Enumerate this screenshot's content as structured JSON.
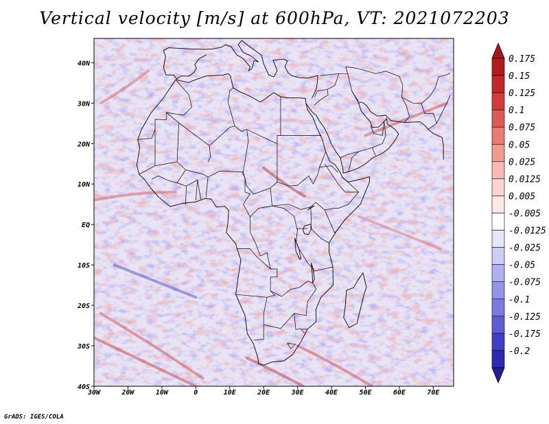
{
  "title": "Vertical velocity [m/s] at 600hPa, VT: 2021072203",
  "credit": "GrADS: IGES/COLA",
  "map": {
    "projection": "latlon",
    "lon_range": [
      -30,
      76
    ],
    "lat_range": [
      -40,
      46
    ],
    "lon_ticks": [
      {
        "value": -30,
        "label": "30W"
      },
      {
        "value": -20,
        "label": "20W"
      },
      {
        "value": -10,
        "label": "10W"
      },
      {
        "value": 0,
        "label": "0"
      },
      {
        "value": 10,
        "label": "10E"
      },
      {
        "value": 20,
        "label": "20E"
      },
      {
        "value": 30,
        "label": "30E"
      },
      {
        "value": 40,
        "label": "40E"
      },
      {
        "value": 50,
        "label": "50E"
      },
      {
        "value": 60,
        "label": "60E"
      },
      {
        "value": 70,
        "label": "70E"
      }
    ],
    "lat_ticks": [
      {
        "value": 40,
        "label": "40N"
      },
      {
        "value": 30,
        "label": "30N"
      },
      {
        "value": 20,
        "label": "20N"
      },
      {
        "value": 10,
        "label": "10N"
      },
      {
        "value": 0,
        "label": "EQ"
      },
      {
        "value": -10,
        "label": "10S"
      },
      {
        "value": -20,
        "label": "20S"
      },
      {
        "value": -30,
        "label": "30S"
      },
      {
        "value": -40,
        "label": "40S"
      }
    ]
  },
  "colorbar": {
    "levels": [
      {
        "label": "0.175",
        "color": "#b31a1c"
      },
      {
        "label": "0.15",
        "color": "#c6262a"
      },
      {
        "label": "0.125",
        "color": "#d43c3c"
      },
      {
        "label": "0.1",
        "color": "#e05a55"
      },
      {
        "label": "0.075",
        "color": "#eb7a73"
      },
      {
        "label": "0.05",
        "color": "#f29a92"
      },
      {
        "label": "0.025",
        "color": "#f7b9b2"
      },
      {
        "label": "0.0125",
        "color": "#fbd4cf"
      },
      {
        "label": "0.005",
        "color": "#fde9e6"
      },
      {
        "label": "-0.005",
        "color": "#ffffff"
      },
      {
        "label": "-0.0125",
        "color": "#e6e6fb"
      },
      {
        "label": "-0.025",
        "color": "#ccccf5"
      },
      {
        "label": "-0.05",
        "color": "#b0b0ef"
      },
      {
        "label": "-0.075",
        "color": "#9595e8"
      },
      {
        "label": "-0.1",
        "color": "#7a7ae0"
      },
      {
        "label": "-0.125",
        "color": "#5d5dd6"
      },
      {
        "label": "-0.175",
        "color": "#3f3fca"
      },
      {
        "label": "-0.2",
        "color": "#2b2bb5"
      }
    ],
    "top_color": "#a8161a",
    "bottom_color": "#1f1f9e"
  }
}
